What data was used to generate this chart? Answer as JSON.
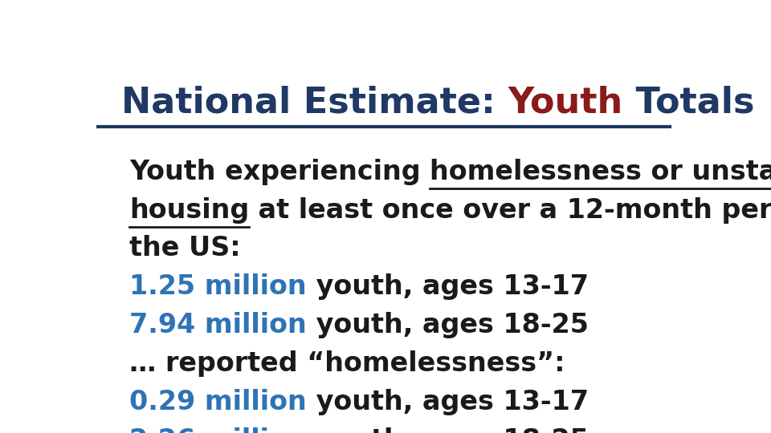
{
  "title_part1": "National Estimate: ",
  "title_part2": "Youth",
  "title_part3": " Totals",
  "title_color1": "#1F3864",
  "title_color2": "#8B1A1A",
  "title_fontsize": 32,
  "divider_color": "#1F3864",
  "bg_color": "#FFFFFF",
  "body_fontsize": 24,
  "body_color": "#1a1a1a",
  "highlight_color": "#2E74B5",
  "stat3": "… reported “homelessness”:"
}
